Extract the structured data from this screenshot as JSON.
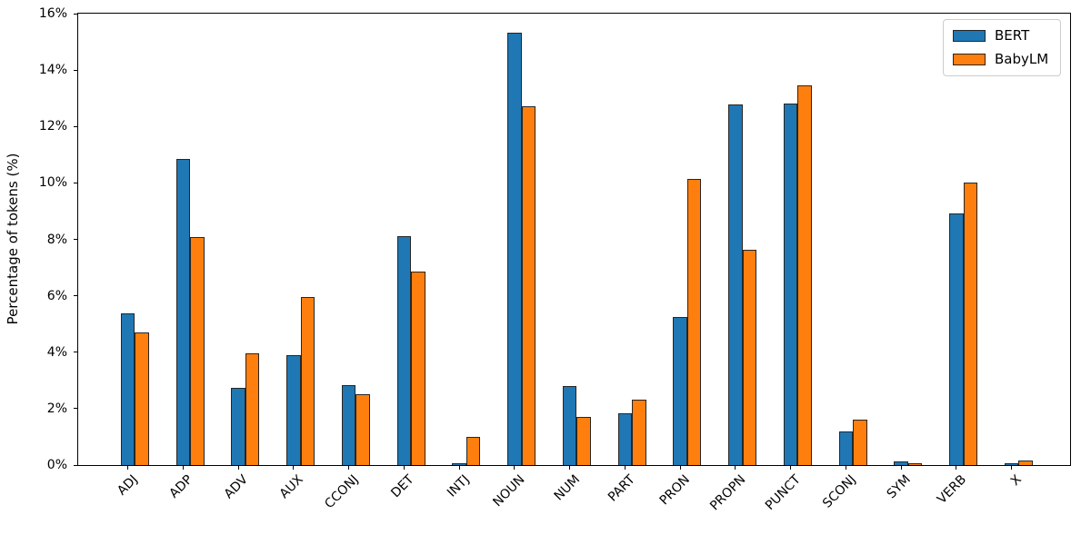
{
  "chart_data": {
    "type": "bar",
    "title": "",
    "xlabel": "",
    "ylabel": "Percentage of tokens (%)",
    "categories": [
      "ADJ",
      "ADP",
      "ADV",
      "AUX",
      "CCONJ",
      "DET",
      "INTJ",
      "NOUN",
      "NUM",
      "PART",
      "PRON",
      "PROPN",
      "PUNCT",
      "SCONJ",
      "SYM",
      "VERB",
      "X"
    ],
    "series": [
      {
        "name": "BERT",
        "color": "#1f77b4",
        "values": [
          5.37,
          10.85,
          2.74,
          3.89,
          2.83,
          8.12,
          0.07,
          15.31,
          2.81,
          1.82,
          5.25,
          12.78,
          12.82,
          1.2,
          0.12,
          8.92,
          0.07
        ]
      },
      {
        "name": "BabyLM",
        "color": "#ff7f0e",
        "values": [
          4.7,
          8.09,
          3.95,
          5.95,
          2.51,
          6.87,
          0.99,
          12.72,
          1.72,
          2.32,
          10.13,
          7.62,
          13.45,
          1.61,
          0.06,
          10.01,
          0.15
        ]
      }
    ],
    "ylim": [
      0,
      16
    ],
    "ytick_values": [
      0,
      2,
      4,
      6,
      8,
      10,
      12,
      14,
      16
    ],
    "ytick_labels": [
      "0%",
      "2%",
      "4%",
      "6%",
      "8%",
      "10%",
      "12%",
      "14%",
      "16%"
    ],
    "legend": {
      "position": "upper-right",
      "entries": [
        "BERT",
        "BabyLM"
      ]
    },
    "grid": false,
    "bar_edge_color": "#262626",
    "axis_color": "#000000"
  }
}
